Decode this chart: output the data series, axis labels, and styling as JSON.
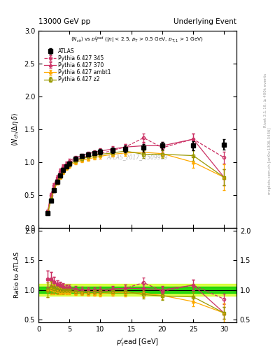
{
  "title_left": "13000 GeV pp",
  "title_right": "Underlying Event",
  "subtitle": "<N_{ch}> vs p_{T}^{lead} (|\\eta| < 2.5, p_{T} > 0.5 GeV, p_{T,1} > 1 GeV)",
  "ylabel_main": "\\langle N_{ch} / \\Delta\\eta\\,\\delta\\rangle",
  "ylabel_ratio": "Ratio to ATLAS",
  "xlabel": "p_{T}^{l}ead [GeV]",
  "watermark": "ATLAS_2017_I1509919",
  "atlas_x": [
    1.5,
    2.0,
    2.5,
    3.0,
    3.5,
    4.0,
    4.5,
    5.0,
    6.0,
    7.0,
    8.0,
    9.0,
    10.0,
    12.0,
    14.0,
    17.0,
    20.0,
    25.0,
    30.0
  ],
  "atlas_y": [
    0.22,
    0.42,
    0.57,
    0.7,
    0.8,
    0.88,
    0.94,
    0.98,
    1.05,
    1.09,
    1.12,
    1.14,
    1.16,
    1.18,
    1.2,
    1.22,
    1.25,
    1.25,
    1.27
  ],
  "atlas_yerr": [
    0.02,
    0.03,
    0.03,
    0.03,
    0.03,
    0.03,
    0.03,
    0.03,
    0.03,
    0.03,
    0.03,
    0.03,
    0.04,
    0.04,
    0.05,
    0.06,
    0.06,
    0.07,
    0.08
  ],
  "py345_x": [
    1.5,
    2.0,
    2.5,
    3.0,
    3.5,
    4.0,
    4.5,
    5.0,
    6.0,
    7.0,
    8.0,
    9.0,
    10.0,
    12.0,
    14.0,
    17.0,
    20.0,
    25.0,
    30.0
  ],
  "py345_y": [
    0.26,
    0.5,
    0.65,
    0.77,
    0.86,
    0.93,
    0.97,
    1.0,
    1.04,
    1.07,
    1.09,
    1.11,
    1.13,
    1.18,
    1.23,
    1.37,
    1.22,
    1.35,
    1.07
  ],
  "py345_yerr": [
    0.02,
    0.03,
    0.03,
    0.03,
    0.03,
    0.03,
    0.03,
    0.03,
    0.03,
    0.03,
    0.03,
    0.03,
    0.04,
    0.04,
    0.05,
    0.07,
    0.06,
    0.08,
    0.09
  ],
  "py345_color": "#cc3366",
  "py345_label": "Pythia 6.427 345",
  "py370_x": [
    1.5,
    2.0,
    2.5,
    3.0,
    3.5,
    4.0,
    4.5,
    5.0,
    6.0,
    7.0,
    8.0,
    9.0,
    10.0,
    12.0,
    14.0,
    17.0,
    20.0,
    25.0,
    30.0
  ],
  "py370_y": [
    0.26,
    0.5,
    0.65,
    0.77,
    0.87,
    0.94,
    0.98,
    1.02,
    1.07,
    1.1,
    1.13,
    1.15,
    1.17,
    1.2,
    1.23,
    1.25,
    1.25,
    1.35,
    0.77
  ],
  "py370_yerr": [
    0.02,
    0.03,
    0.03,
    0.03,
    0.03,
    0.03,
    0.03,
    0.03,
    0.03,
    0.03,
    0.03,
    0.03,
    0.04,
    0.04,
    0.05,
    0.06,
    0.06,
    0.08,
    0.12
  ],
  "py370_color": "#cc3366",
  "py370_label": "Pythia 6.427 370",
  "pyambt1_x": [
    1.5,
    2.0,
    2.5,
    3.0,
    3.5,
    4.0,
    4.5,
    5.0,
    6.0,
    7.0,
    8.0,
    9.0,
    10.0,
    12.0,
    14.0,
    17.0,
    20.0,
    25.0,
    30.0
  ],
  "pyambt1_y": [
    0.22,
    0.43,
    0.57,
    0.69,
    0.78,
    0.85,
    0.91,
    0.95,
    1.0,
    1.03,
    1.05,
    1.07,
    1.09,
    1.12,
    1.14,
    1.15,
    1.13,
    1.0,
    0.77
  ],
  "pyambt1_yerr": [
    0.02,
    0.03,
    0.03,
    0.03,
    0.03,
    0.03,
    0.03,
    0.03,
    0.03,
    0.03,
    0.03,
    0.03,
    0.04,
    0.04,
    0.05,
    0.06,
    0.06,
    0.08,
    0.2
  ],
  "pyambt1_color": "#ffaa00",
  "pyambt1_label": "Pythia 6.427 ambt1",
  "pyz2_x": [
    1.5,
    2.0,
    2.5,
    3.0,
    3.5,
    4.0,
    4.5,
    5.0,
    6.0,
    7.0,
    8.0,
    9.0,
    10.0,
    12.0,
    14.0,
    17.0,
    20.0,
    25.0,
    30.0
  ],
  "pyz2_y": [
    0.22,
    0.44,
    0.58,
    0.7,
    0.8,
    0.87,
    0.93,
    0.97,
    1.02,
    1.05,
    1.08,
    1.1,
    1.12,
    1.14,
    1.17,
    1.12,
    1.12,
    1.1,
    0.77
  ],
  "pyz2_yerr": [
    0.02,
    0.03,
    0.03,
    0.03,
    0.03,
    0.03,
    0.03,
    0.03,
    0.03,
    0.03,
    0.03,
    0.03,
    0.04,
    0.04,
    0.05,
    0.06,
    0.06,
    0.08,
    0.12
  ],
  "pyz2_color": "#999900",
  "pyz2_label": "Pythia 6.427 z2",
  "ylim_main": [
    0.0,
    3.0
  ],
  "ylim_ratio": [
    0.45,
    2.05
  ],
  "xlim": [
    0.5,
    32.0
  ],
  "atlas_band_half": 0.05,
  "atlas_band_color": "#00cc00",
  "atlas_band_outer_color": "#ccff00"
}
